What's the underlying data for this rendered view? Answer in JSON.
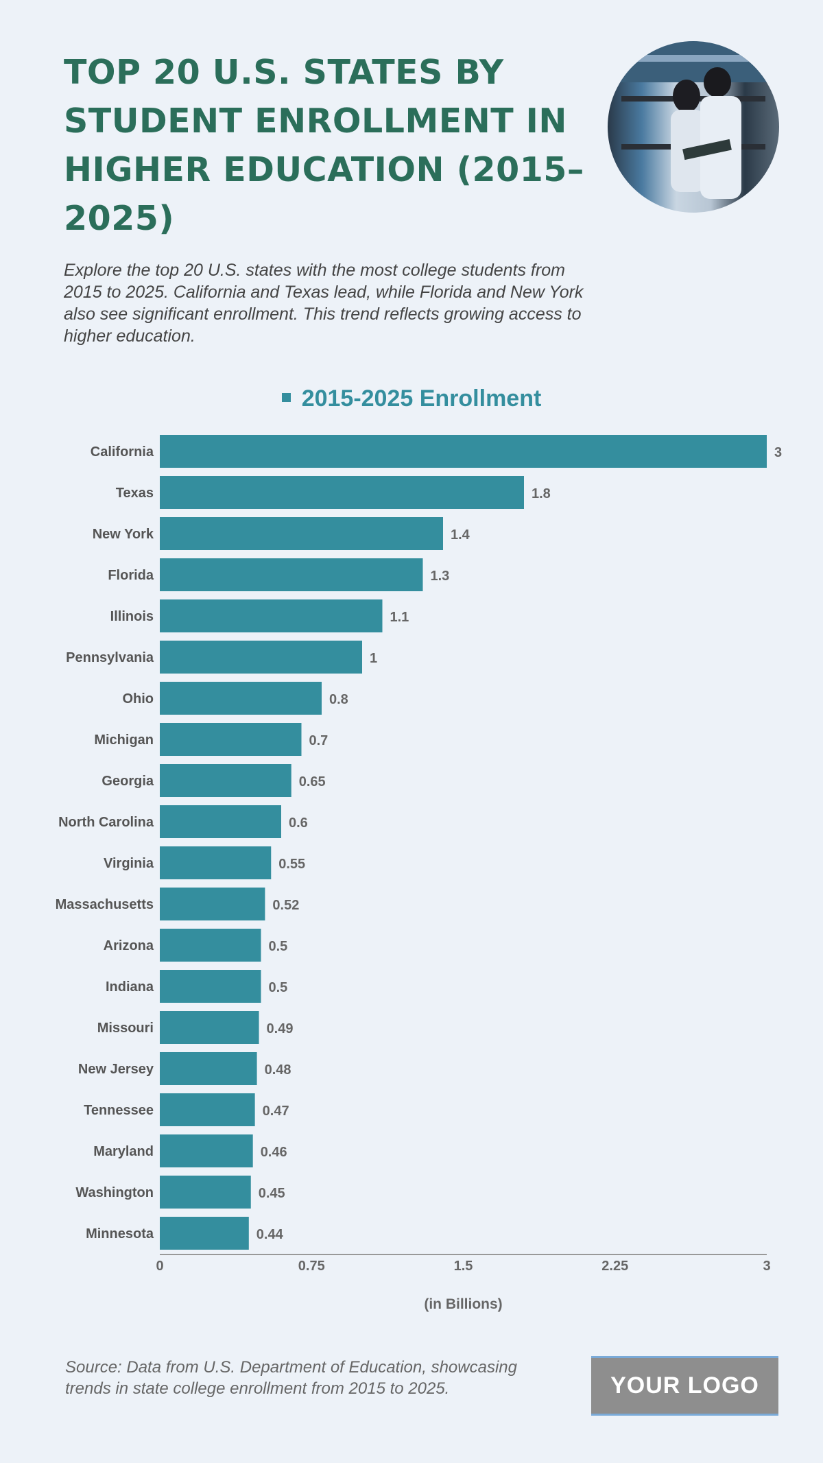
{
  "header": {
    "title": "TOP 20 U.S. STATES BY STUDENT ENROLLMENT IN HIGHER EDUCATION (2015–2025)",
    "description": "Explore the top 20 U.S. states with the most college students from 2015 to 2025. California and Texas lead, while Florida and New York also see significant enrollment. This trend reflects growing access to higher education."
  },
  "footer": {
    "source": "Source: Data from U.S. Department of Education, showcasing trends in state college enrollment from 2015 to 2025.",
    "logo": "YOUR LOGO"
  },
  "chart_data": {
    "type": "bar",
    "orientation": "horizontal",
    "categories": [
      "California",
      "Texas",
      "New York",
      "Florida",
      "Illinois",
      "Pennsylvania",
      "Ohio",
      "Michigan",
      "Georgia",
      "North Carolina",
      "Virginia",
      "Massachusetts",
      "Arizona",
      "Indiana",
      "Missouri",
      "New Jersey",
      "Tennessee",
      "Maryland",
      "Washington",
      "Minnesota"
    ],
    "series": [
      {
        "name": "2015-2025 Enrollment",
        "values": [
          3,
          1.8,
          1.4,
          1.3,
          1.1,
          1,
          0.8,
          0.7,
          0.65,
          0.6,
          0.55,
          0.52,
          0.5,
          0.5,
          0.49,
          0.48,
          0.47,
          0.46,
          0.45,
          0.44
        ]
      }
    ],
    "xlabel": "(in Billions)",
    "xlim": [
      0,
      3
    ],
    "xticks": [
      "0",
      "0.75",
      "1.5",
      "2.25",
      "3"
    ],
    "legend": "top",
    "grid": false,
    "color": "#348e9e"
  }
}
